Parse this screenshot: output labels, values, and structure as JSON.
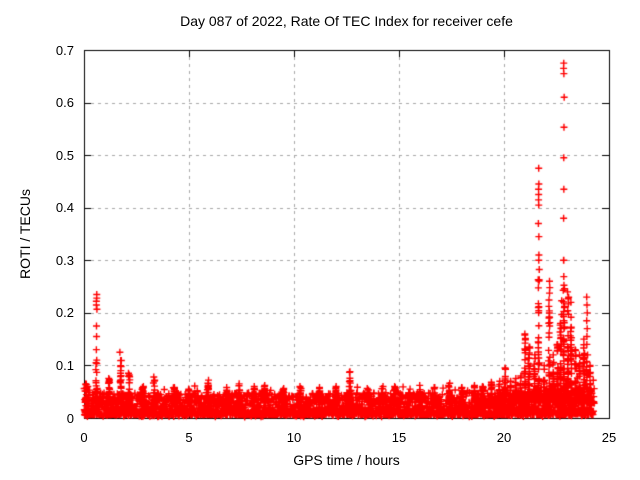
{
  "chart_data": {
    "type": "scatter",
    "title": "Day 087 of 2022, Rate Of TEC Index for receiver cefe",
    "xlabel": "GPS time / hours",
    "ylabel": "ROTI / TECUs",
    "xlim": [
      0,
      25
    ],
    "ylim": [
      0,
      0.7
    ],
    "xticks": {
      "values": [
        0,
        5,
        10,
        15,
        20,
        25
      ],
      "labels": [
        "0",
        "5",
        "10",
        "15",
        "20",
        "25"
      ]
    },
    "yticks": {
      "values": [
        0,
        0.1,
        0.2,
        0.3,
        0.4,
        0.5,
        0.6,
        0.7
      ],
      "labels": [
        "0",
        "0.1",
        "0.2",
        "0.3",
        "0.4",
        "0.5",
        "0.6",
        "0.7"
      ]
    },
    "grid": {
      "visible": true,
      "style": "dashed",
      "color": "#a8a8a8",
      "at": "major-ticks"
    },
    "legend": "none",
    "marker": {
      "shape": "plus",
      "color": "#ff0000",
      "size": 7
    },
    "axis_color": "#000000",
    "background": "#ffffff",
    "series_name": "ROTI",
    "data_span_hours": [
      0,
      24.3
    ],
    "baseline": {
      "points": 2900,
      "y_min": 0.006,
      "band_height": 0.042,
      "description": "dense noise band ~0.005-0.05 TECUs across all 24 hours, slightly elevated after 19.5h"
    },
    "spikes": [
      {
        "x": 0.1,
        "peak": 0.065
      },
      {
        "x": 0.6,
        "peak": 0.105
      },
      {
        "x": 1.2,
        "peak": 0.075
      },
      {
        "x": 1.75,
        "peak": 0.125
      },
      {
        "x": 2.15,
        "peak": 0.085
      },
      {
        "x": 2.8,
        "peak": 0.06
      },
      {
        "x": 3.35,
        "peak": 0.078
      },
      {
        "x": 4.3,
        "peak": 0.058
      },
      {
        "x": 5.0,
        "peak": 0.055
      },
      {
        "x": 5.9,
        "peak": 0.072
      },
      {
        "x": 6.8,
        "peak": 0.058
      },
      {
        "x": 7.4,
        "peak": 0.065
      },
      {
        "x": 8.1,
        "peak": 0.06
      },
      {
        "x": 8.6,
        "peak": 0.062
      },
      {
        "x": 9.5,
        "peak": 0.056
      },
      {
        "x": 10.3,
        "peak": 0.06
      },
      {
        "x": 11.2,
        "peak": 0.058
      },
      {
        "x": 12.0,
        "peak": 0.06
      },
      {
        "x": 12.65,
        "peak": 0.088
      },
      {
        "x": 13.5,
        "peak": 0.056
      },
      {
        "x": 14.2,
        "peak": 0.06
      },
      {
        "x": 14.8,
        "peak": 0.06
      },
      {
        "x": 15.5,
        "peak": 0.055
      },
      {
        "x": 16.0,
        "peak": 0.062
      },
      {
        "x": 16.7,
        "peak": 0.058
      },
      {
        "x": 17.4,
        "peak": 0.066
      },
      {
        "x": 18.0,
        "peak": 0.058
      },
      {
        "x": 18.6,
        "peak": 0.062
      },
      {
        "x": 19.0,
        "peak": 0.06
      },
      {
        "x": 19.4,
        "peak": 0.068
      },
      {
        "x": 19.8,
        "peak": 0.07
      },
      {
        "x": 20.05,
        "peak": 0.095
      },
      {
        "x": 20.3,
        "peak": 0.07
      },
      {
        "x": 20.55,
        "peak": 0.075
      },
      {
        "x": 20.8,
        "peak": 0.08
      },
      {
        "x": 21.0,
        "peak": 0.16
      },
      {
        "x": 21.2,
        "peak": 0.135
      },
      {
        "x": 21.45,
        "peak": 0.12
      },
      {
        "x": 21.65,
        "peak": 0.3
      },
      {
        "x": 21.9,
        "peak": 0.1
      },
      {
        "x": 22.15,
        "peak": 0.26
      },
      {
        "x": 22.35,
        "peak": 0.12
      },
      {
        "x": 22.55,
        "peak": 0.14
      },
      {
        "x": 22.7,
        "peak": 0.18
      },
      {
        "x": 22.85,
        "peak": 0.3
      },
      {
        "x": 23.05,
        "peak": 0.24
      },
      {
        "x": 23.2,
        "peak": 0.22
      },
      {
        "x": 23.4,
        "peak": 0.13
      },
      {
        "x": 23.6,
        "peak": 0.12
      },
      {
        "x": 23.8,
        "peak": 0.15
      },
      {
        "x": 23.95,
        "peak": 0.12
      },
      {
        "x": 24.1,
        "peak": 0.1
      }
    ],
    "outlier_columns": [
      {
        "x": 0.6,
        "values": [
          0.235,
          0.228,
          0.222,
          0.215,
          0.207,
          0.175,
          0.155,
          0.13,
          0.11
        ]
      },
      {
        "x": 21.65,
        "values": [
          0.475,
          0.445,
          0.435,
          0.425,
          0.415,
          0.405,
          0.37,
          0.345,
          0.31
        ]
      },
      {
        "x": 22.76,
        "values": [
          0.223,
          0.197
        ]
      },
      {
        "x": 22.85,
        "values": [
          0.675,
          0.665,
          0.655,
          0.61,
          0.553,
          0.495,
          0.435,
          0.38,
          0.3
        ]
      },
      {
        "x": 23.95,
        "values": [
          0.23,
          0.215,
          0.2,
          0.185,
          0.17,
          0.155,
          0.14
        ]
      }
    ]
  }
}
